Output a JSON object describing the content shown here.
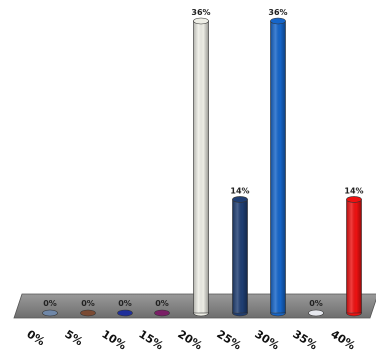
{
  "chart_data": {
    "type": "bar",
    "categories": [
      "0%",
      "5%",
      "10%",
      "15%",
      "20%",
      "25%",
      "30%",
      "35%",
      "40%"
    ],
    "values": [
      0,
      0,
      0,
      0,
      36,
      14,
      36,
      0,
      14
    ],
    "data_labels": [
      "0%",
      "0%",
      "0%",
      "0%",
      "36%",
      "14%",
      "36%",
      "0%",
      "14%"
    ],
    "colors": [
      "#6f87a8",
      "#7a4a33",
      "#1f2f9a",
      "#7a1f66",
      "#eeeee6",
      "#1f3e73",
      "#1565c9",
      "#e6e8ee",
      "#ee1111"
    ],
    "ylim": [
      0,
      36
    ],
    "floor_color": "#8a8a8a",
    "title": "",
    "xlabel": "",
    "ylabel": "",
    "legend": "none",
    "grid": false,
    "style": "3d-cylinder"
  }
}
